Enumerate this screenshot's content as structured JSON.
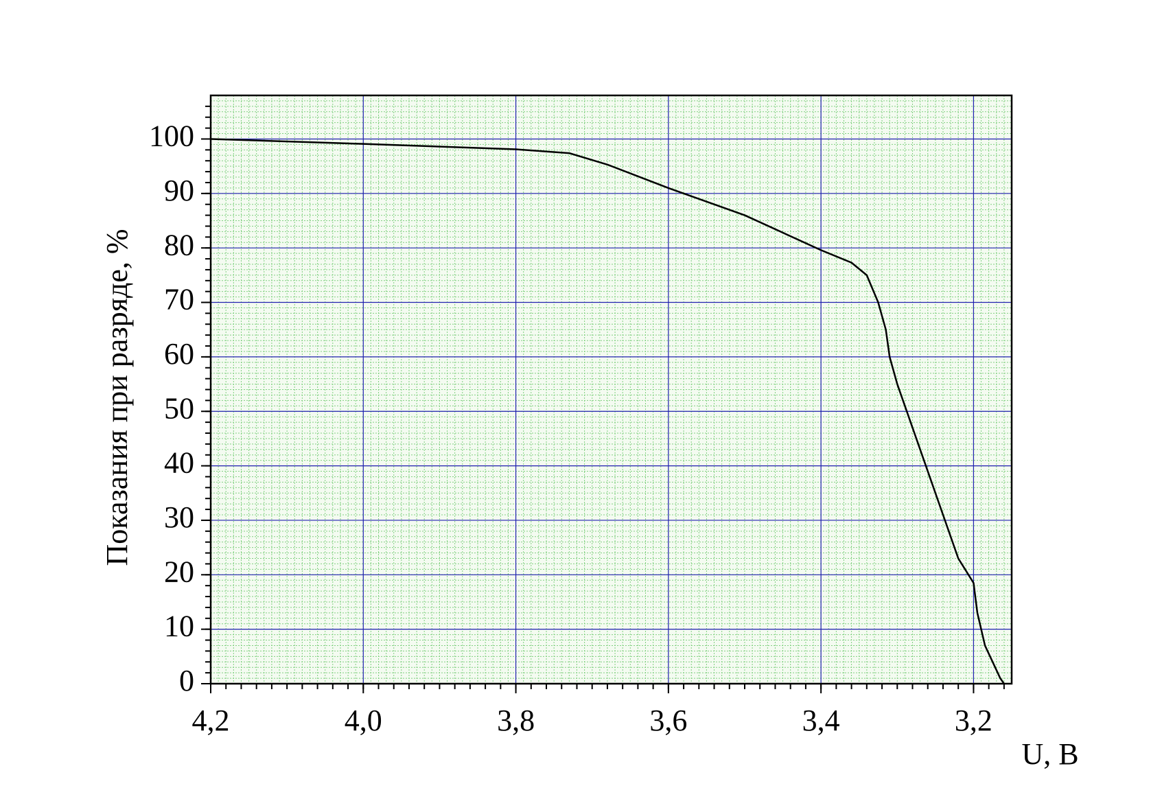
{
  "chart_data": {
    "type": "line",
    "xlabel": "U, В",
    "ylabel": "Показания при разряде, %",
    "x": [
      4.2,
      4.0,
      3.8,
      3.73,
      3.68,
      3.6,
      3.5,
      3.4,
      3.36,
      3.34,
      3.325,
      3.315,
      3.31,
      3.3,
      3.28,
      3.26,
      3.24,
      3.22,
      3.2,
      3.195,
      3.185,
      3.175,
      3.165,
      3.16
    ],
    "series": [
      {
        "color": "#000000",
        "values": [
          100,
          99.1,
          98.1,
          97.4,
          95.3,
          91,
          86,
          79.6,
          77.3,
          75,
          70,
          65,
          60,
          55,
          47,
          39,
          31,
          23,
          18.5,
          13,
          7,
          4,
          1,
          0
        ]
      }
    ],
    "xlim": [
      4.2,
      3.15
    ],
    "xticks": [
      {
        "value": 4.2,
        "label": "4,2"
      },
      {
        "value": 4.0,
        "label": "4,0"
      },
      {
        "value": 3.8,
        "label": "3,8"
      },
      {
        "value": 3.6,
        "label": "3,6"
      },
      {
        "value": 3.4,
        "label": "3,4"
      },
      {
        "value": 3.2,
        "label": "3,2"
      }
    ],
    "ylim": [
      0,
      108
    ],
    "yticks": [
      0,
      10,
      20,
      30,
      40,
      50,
      60,
      70,
      80,
      90,
      100
    ],
    "grid": true,
    "grid_color": "#2020b0",
    "minor_grid_color": "#7fd07f",
    "background": "#f4fbf1"
  }
}
